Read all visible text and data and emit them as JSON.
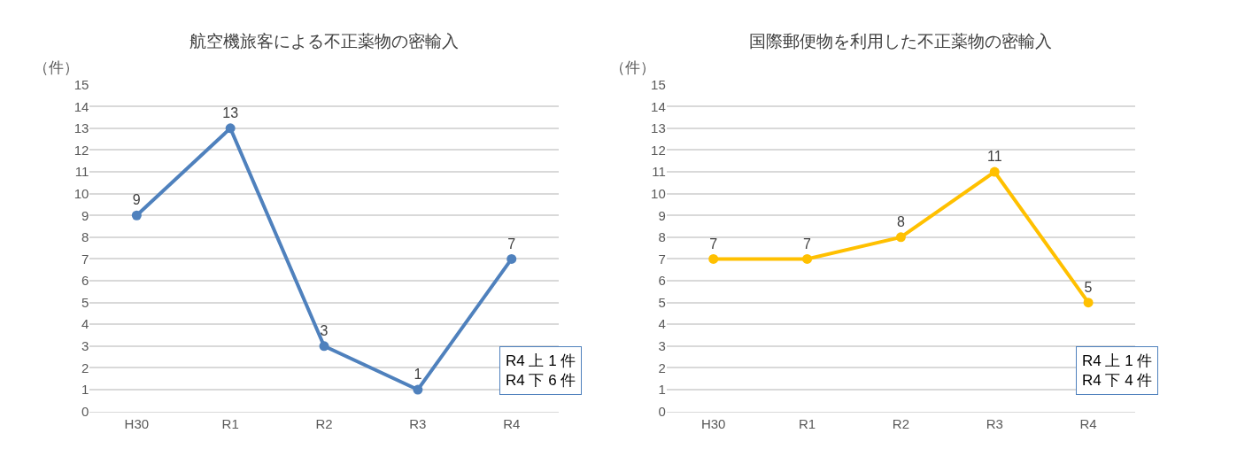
{
  "chart_data": [
    {
      "type": "line",
      "title": "航空機旅客による不正薬物の密輸入",
      "ylabel": "（件）",
      "categories": [
        "H30",
        "R1",
        "R2",
        "R3",
        "R4"
      ],
      "series": [
        {
          "color": "#4f81bd",
          "values": [
            9,
            13,
            3,
            1,
            7
          ]
        }
      ],
      "ylim": [
        0,
        15
      ],
      "yticks": [
        0,
        1,
        2,
        3,
        4,
        5,
        6,
        7,
        8,
        9,
        10,
        11,
        12,
        13,
        14,
        15
      ],
      "grid": "y",
      "marker": "circle",
      "line_style": "solid",
      "data_labels": true,
      "annotations": [
        "R4 上 1 件\nR4 下 6 件"
      ]
    },
    {
      "type": "line",
      "title": "国際郵便物を利用した不正薬物の密輸入",
      "ylabel": "（件）",
      "categories": [
        "H30",
        "R1",
        "R2",
        "R3",
        "R4"
      ],
      "series": [
        {
          "color": "#ffc000",
          "values": [
            7,
            7,
            8,
            11,
            5
          ]
        }
      ],
      "ylim": [
        0,
        15
      ],
      "yticks": [
        0,
        1,
        2,
        3,
        4,
        5,
        6,
        7,
        8,
        9,
        10,
        11,
        12,
        13,
        14,
        15
      ],
      "grid": "y",
      "marker": "circle",
      "line_style": "solid",
      "data_labels": true,
      "annotations": [
        "R4 上 1 件\nR4 下 4 件"
      ]
    }
  ]
}
